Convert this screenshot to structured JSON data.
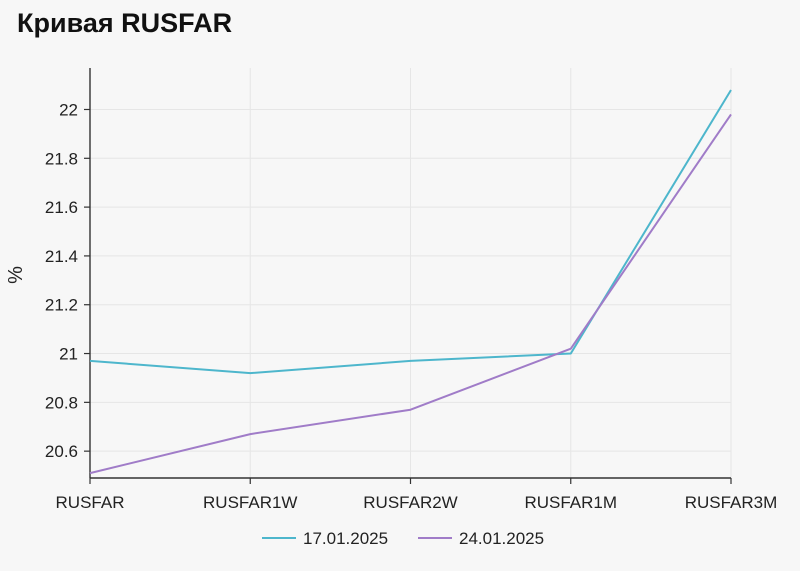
{
  "title": "Кривая RUSFAR",
  "colors": {
    "series_0": "#4db6cc",
    "series_1": "#a07cc8"
  },
  "chart_data": {
    "type": "line",
    "categories": [
      "RUSFAR",
      "RUSFAR1W",
      "RUSFAR2W",
      "RUSFAR1M",
      "RUSFAR3M"
    ],
    "series": [
      {
        "name": "17.01.2025",
        "values": [
          20.97,
          20.92,
          20.97,
          21.0,
          22.08
        ]
      },
      {
        "name": "24.01.2025",
        "values": [
          20.51,
          20.67,
          20.77,
          21.02,
          21.98
        ]
      }
    ],
    "ylabel": "%",
    "ylim": [
      20.49,
      22.17
    ],
    "yticks": [
      "20.6",
      "20.8",
      "21",
      "21.2",
      "21.4",
      "21.6",
      "21.8",
      "22"
    ],
    "grid": true,
    "legend": "bottom"
  }
}
